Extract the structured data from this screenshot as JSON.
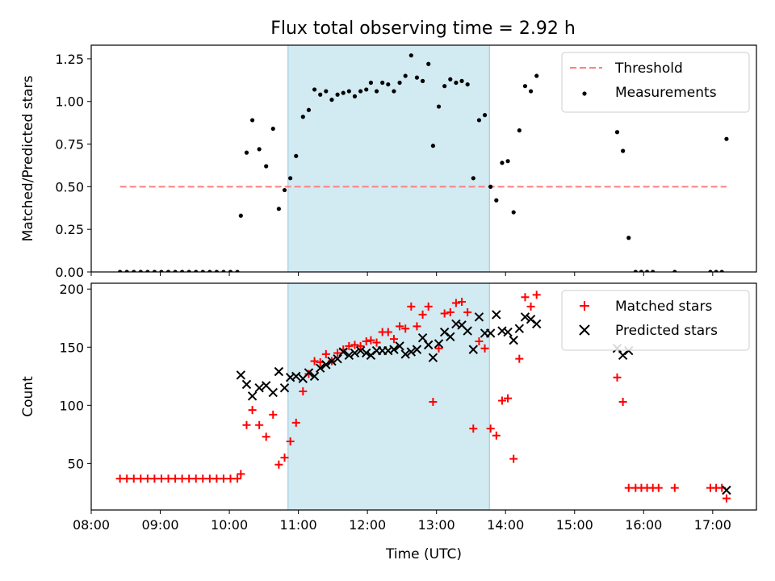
{
  "title": "Flux total observing time = 2.92 h",
  "chart_data": [
    {
      "type": "scatter",
      "ylabel": "Matched/Predicted stars",
      "xlabel": "",
      "xlim": [
        "08:00",
        "17:38"
      ],
      "ylim": [
        0.0,
        1.33
      ],
      "x_ticks": [
        "08:00",
        "09:00",
        "10:00",
        "11:00",
        "12:00",
        "13:00",
        "14:00",
        "15:00",
        "16:00",
        "17:00"
      ],
      "y_ticks": [
        "0.00",
        "0.25",
        "0.50",
        "0.75",
        "1.00",
        "1.25"
      ],
      "shaded_span": {
        "start": "10:51",
        "end": "13:46",
        "color": "#add8e6"
      },
      "legend_position": "upper right",
      "threshold": {
        "name": "Threshold",
        "value": 0.5,
        "x_range": [
          "08:25",
          "17:12"
        ],
        "color": "#ff7f7f"
      },
      "series": [
        {
          "name": "Measurements",
          "marker": "dot",
          "color": "#000000",
          "points": [
            [
              "08:25",
              0
            ],
            [
              "08:31",
              0
            ],
            [
              "08:37",
              0
            ],
            [
              "08:43",
              0
            ],
            [
              "08:49",
              0
            ],
            [
              "08:55",
              0
            ],
            [
              "09:01",
              0
            ],
            [
              "09:07",
              0
            ],
            [
              "09:13",
              0
            ],
            [
              "09:19",
              0
            ],
            [
              "09:25",
              0
            ],
            [
              "09:31",
              0
            ],
            [
              "09:37",
              0
            ],
            [
              "09:43",
              0
            ],
            [
              "09:49",
              0
            ],
            [
              "09:55",
              0
            ],
            [
              "10:01",
              0
            ],
            [
              "10:07",
              0
            ],
            [
              "10:10",
              0.33
            ],
            [
              "10:15",
              0.7
            ],
            [
              "10:20",
              0.89
            ],
            [
              "10:26",
              0.72
            ],
            [
              "10:32",
              0.62
            ],
            [
              "10:38",
              0.84
            ],
            [
              "10:43",
              0.37
            ],
            [
              "10:48",
              0.48
            ],
            [
              "10:53",
              0.55
            ],
            [
              "10:58",
              0.68
            ],
            [
              "11:04",
              0.91
            ],
            [
              "11:09",
              0.95
            ],
            [
              "11:14",
              1.07
            ],
            [
              "11:19",
              1.04
            ],
            [
              "11:24",
              1.06
            ],
            [
              "11:29",
              1.01
            ],
            [
              "11:34",
              1.04
            ],
            [
              "11:39",
              1.05
            ],
            [
              "11:44",
              1.06
            ],
            [
              "11:49",
              1.03
            ],
            [
              "11:54",
              1.06
            ],
            [
              "11:59",
              1.07
            ],
            [
              "12:03",
              1.11
            ],
            [
              "12:08",
              1.06
            ],
            [
              "12:13",
              1.11
            ],
            [
              "12:18",
              1.1
            ],
            [
              "12:23",
              1.06
            ],
            [
              "12:28",
              1.11
            ],
            [
              "12:33",
              1.15
            ],
            [
              "12:38",
              1.27
            ],
            [
              "12:43",
              1.14
            ],
            [
              "12:48",
              1.12
            ],
            [
              "12:53",
              1.22
            ],
            [
              "12:57",
              0.74
            ],
            [
              "13:02",
              0.97
            ],
            [
              "13:07",
              1.09
            ],
            [
              "13:12",
              1.13
            ],
            [
              "13:17",
              1.11
            ],
            [
              "13:22",
              1.12
            ],
            [
              "13:27",
              1.1
            ],
            [
              "13:32",
              0.55
            ],
            [
              "13:37",
              0.89
            ],
            [
              "13:42",
              0.92
            ],
            [
              "13:47",
              0.5
            ],
            [
              "13:52",
              0.42
            ],
            [
              "13:57",
              0.64
            ],
            [
              "14:02",
              0.65
            ],
            [
              "14:07",
              0.35
            ],
            [
              "14:12",
              0.83
            ],
            [
              "14:17",
              1.09
            ],
            [
              "14:22",
              1.06
            ],
            [
              "14:27",
              1.15
            ],
            [
              "15:37",
              0.82
            ],
            [
              "15:42",
              0.71
            ],
            [
              "15:47",
              0.2
            ],
            [
              "15:53",
              0
            ],
            [
              "15:58",
              0
            ],
            [
              "16:03",
              0
            ],
            [
              "16:08",
              0
            ],
            [
              "16:27",
              0
            ],
            [
              "16:58",
              0
            ],
            [
              "17:03",
              0
            ],
            [
              "17:08",
              0
            ],
            [
              "17:12",
              0.78
            ]
          ]
        }
      ]
    },
    {
      "type": "scatter",
      "ylabel": "Count",
      "xlabel": "Time (UTC)",
      "xlim": [
        "08:00",
        "17:38"
      ],
      "ylim": [
        10,
        205
      ],
      "x_ticks": [
        "08:00",
        "09:00",
        "10:00",
        "11:00",
        "12:00",
        "13:00",
        "14:00",
        "15:00",
        "16:00",
        "17:00"
      ],
      "y_ticks": [
        "50",
        "100",
        "150",
        "200"
      ],
      "shaded_span": {
        "start": "10:51",
        "end": "13:46",
        "color": "#add8e6"
      },
      "legend_position": "upper right",
      "series": [
        {
          "name": "Matched stars",
          "marker": "plus",
          "color": "#ff0000",
          "points": [
            [
              "08:25",
              37
            ],
            [
              "08:31",
              37
            ],
            [
              "08:37",
              37
            ],
            [
              "08:43",
              37
            ],
            [
              "08:49",
              37
            ],
            [
              "08:55",
              37
            ],
            [
              "09:01",
              37
            ],
            [
              "09:07",
              37
            ],
            [
              "09:13",
              37
            ],
            [
              "09:19",
              37
            ],
            [
              "09:25",
              37
            ],
            [
              "09:31",
              37
            ],
            [
              "09:37",
              37
            ],
            [
              "09:43",
              37
            ],
            [
              "09:49",
              37
            ],
            [
              "09:55",
              37
            ],
            [
              "10:01",
              37
            ],
            [
              "10:07",
              37
            ],
            [
              "10:10",
              41
            ],
            [
              "10:15",
              83
            ],
            [
              "10:20",
              96
            ],
            [
              "10:26",
              83
            ],
            [
              "10:32",
              73
            ],
            [
              "10:38",
              92
            ],
            [
              "10:43",
              49
            ],
            [
              "10:48",
              55
            ],
            [
              "10:53",
              69
            ],
            [
              "10:58",
              85
            ],
            [
              "11:04",
              112
            ],
            [
              "11:09",
              127
            ],
            [
              "11:14",
              138
            ],
            [
              "11:19",
              137
            ],
            [
              "11:24",
              144
            ],
            [
              "11:29",
              138
            ],
            [
              "11:34",
              145
            ],
            [
              "11:39",
              148
            ],
            [
              "11:44",
              151
            ],
            [
              "11:49",
              152
            ],
            [
              "11:54",
              151
            ],
            [
              "11:59",
              155
            ],
            [
              "12:03",
              156
            ],
            [
              "12:08",
              154
            ],
            [
              "12:13",
              163
            ],
            [
              "12:18",
              163
            ],
            [
              "12:23",
              157
            ],
            [
              "12:28",
              168
            ],
            [
              "12:33",
              166
            ],
            [
              "12:38",
              185
            ],
            [
              "12:43",
              168
            ],
            [
              "12:48",
              178
            ],
            [
              "12:53",
              185
            ],
            [
              "12:57",
              103
            ],
            [
              "13:02",
              149
            ],
            [
              "13:07",
              179
            ],
            [
              "13:12",
              180
            ],
            [
              "13:17",
              188
            ],
            [
              "13:22",
              189
            ],
            [
              "13:27",
              180
            ],
            [
              "13:32",
              80
            ],
            [
              "13:37",
              155
            ],
            [
              "13:42",
              149
            ],
            [
              "13:47",
              80
            ],
            [
              "13:52",
              74
            ],
            [
              "13:57",
              104
            ],
            [
              "14:02",
              106
            ],
            [
              "14:07",
              54
            ],
            [
              "14:12",
              140
            ],
            [
              "14:17",
              193
            ],
            [
              "14:22",
              185
            ],
            [
              "14:27",
              195
            ],
            [
              "15:37",
              124
            ],
            [
              "15:42",
              103
            ],
            [
              "15:47",
              29
            ],
            [
              "15:53",
              29
            ],
            [
              "15:58",
              29
            ],
            [
              "16:03",
              29
            ],
            [
              "16:08",
              29
            ],
            [
              "16:13",
              29
            ],
            [
              "16:27",
              29
            ],
            [
              "16:58",
              29
            ],
            [
              "17:03",
              29
            ],
            [
              "17:08",
              29
            ],
            [
              "17:12",
              20
            ]
          ]
        },
        {
          "name": "Predicted stars",
          "marker": "x",
          "color": "#000000",
          "points": [
            [
              "10:10",
              126
            ],
            [
              "10:15",
              118
            ],
            [
              "10:20",
              108
            ],
            [
              "10:26",
              115
            ],
            [
              "10:32",
              117
            ],
            [
              "10:38",
              111
            ],
            [
              "10:43",
              129
            ],
            [
              "10:48",
              115
            ],
            [
              "10:53",
              124
            ],
            [
              "10:58",
              125
            ],
            [
              "11:04",
              123
            ],
            [
              "11:09",
              128
            ],
            [
              "11:14",
              125
            ],
            [
              "11:19",
              132
            ],
            [
              "11:24",
              135
            ],
            [
              "11:29",
              138
            ],
            [
              "11:34",
              140
            ],
            [
              "11:39",
              146
            ],
            [
              "11:44",
              143
            ],
            [
              "11:49",
              145
            ],
            [
              "11:54",
              147
            ],
            [
              "11:59",
              145
            ],
            [
              "12:03",
              143
            ],
            [
              "12:08",
              147
            ],
            [
              "12:13",
              147
            ],
            [
              "12:18",
              147
            ],
            [
              "12:23",
              148
            ],
            [
              "12:28",
              151
            ],
            [
              "12:33",
              144
            ],
            [
              "12:38",
              146
            ],
            [
              "12:43",
              148
            ],
            [
              "12:48",
              158
            ],
            [
              "12:53",
              152
            ],
            [
              "12:57",
              141
            ],
            [
              "13:02",
              153
            ],
            [
              "13:07",
              163
            ],
            [
              "13:12",
              159
            ],
            [
              "13:17",
              170
            ],
            [
              "13:22",
              169
            ],
            [
              "13:27",
              164
            ],
            [
              "13:32",
              148
            ],
            [
              "13:37",
              176
            ],
            [
              "13:42",
              162
            ],
            [
              "13:47",
              162
            ],
            [
              "13:52",
              178
            ],
            [
              "13:57",
              164
            ],
            [
              "14:02",
              163
            ],
            [
              "14:07",
              156
            ],
            [
              "14:12",
              166
            ],
            [
              "14:17",
              176
            ],
            [
              "14:22",
              174
            ],
            [
              "14:27",
              170
            ],
            [
              "15:37",
              149
            ],
            [
              "15:42",
              143
            ],
            [
              "15:47",
              147
            ],
            [
              "17:12",
              27
            ]
          ]
        }
      ]
    }
  ]
}
